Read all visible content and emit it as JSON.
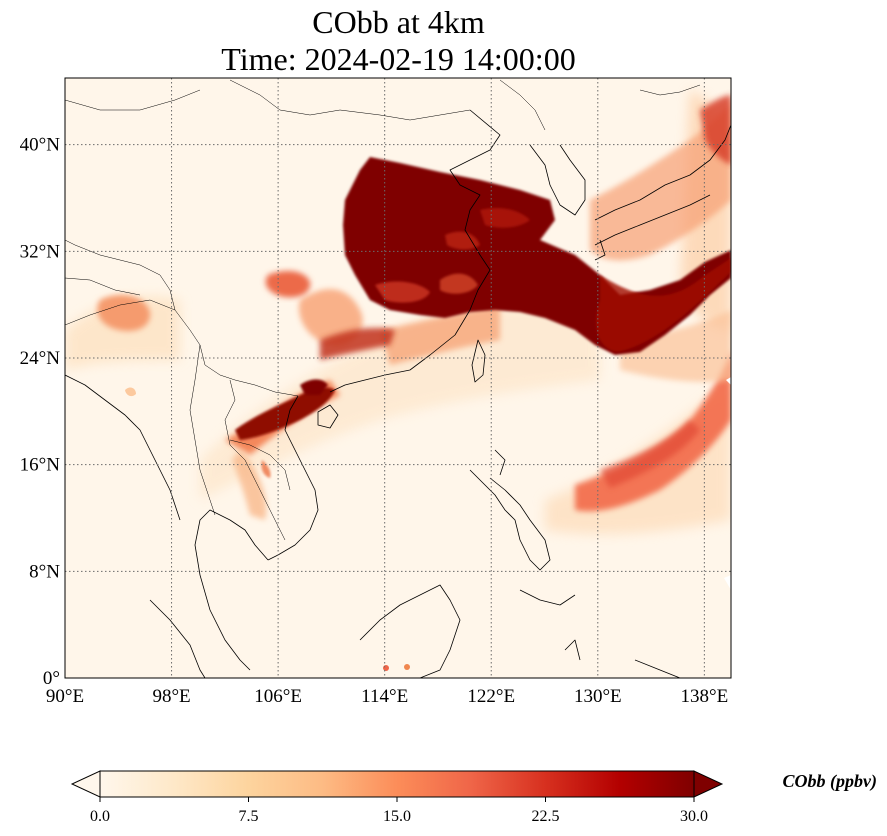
{
  "title": {
    "line1": "CObb at 4km",
    "line2": "Time: 2024-02-19 14:00:00"
  },
  "map": {
    "lon_range": [
      90,
      140
    ],
    "lat_range": [
      0,
      45
    ],
    "lon_ticks": [
      {
        "value": 90,
        "label": "90°E"
      },
      {
        "value": 98,
        "label": "98°E"
      },
      {
        "value": 106,
        "label": "106°E"
      },
      {
        "value": 114,
        "label": "114°E"
      },
      {
        "value": 122,
        "label": "122°E"
      },
      {
        "value": 130,
        "label": "130°E"
      },
      {
        "value": 138,
        "label": "138°E"
      }
    ],
    "lat_ticks": [
      {
        "value": 0,
        "label": "0°"
      },
      {
        "value": 8,
        "label": "8°N"
      },
      {
        "value": 16,
        "label": "16°N"
      },
      {
        "value": 24,
        "label": "24°N"
      },
      {
        "value": 32,
        "label": "32°N"
      },
      {
        "value": 40,
        "label": "40°N"
      }
    ],
    "gridlines": "dotted"
  },
  "colorbar": {
    "title": "CObb (ppbv)",
    "min": 0,
    "max": 30,
    "ticks": [
      {
        "value": 0,
        "label": "0.0"
      },
      {
        "value": 7.5,
        "label": "7.5"
      },
      {
        "value": 15,
        "label": "15.0"
      },
      {
        "value": 22.5,
        "label": "22.5"
      },
      {
        "value": 30,
        "label": "30.0"
      }
    ],
    "colormap": "OrRd",
    "extend": "both"
  },
  "colors": {
    "background_low": "#fff7ec",
    "high": "#7f0000"
  }
}
